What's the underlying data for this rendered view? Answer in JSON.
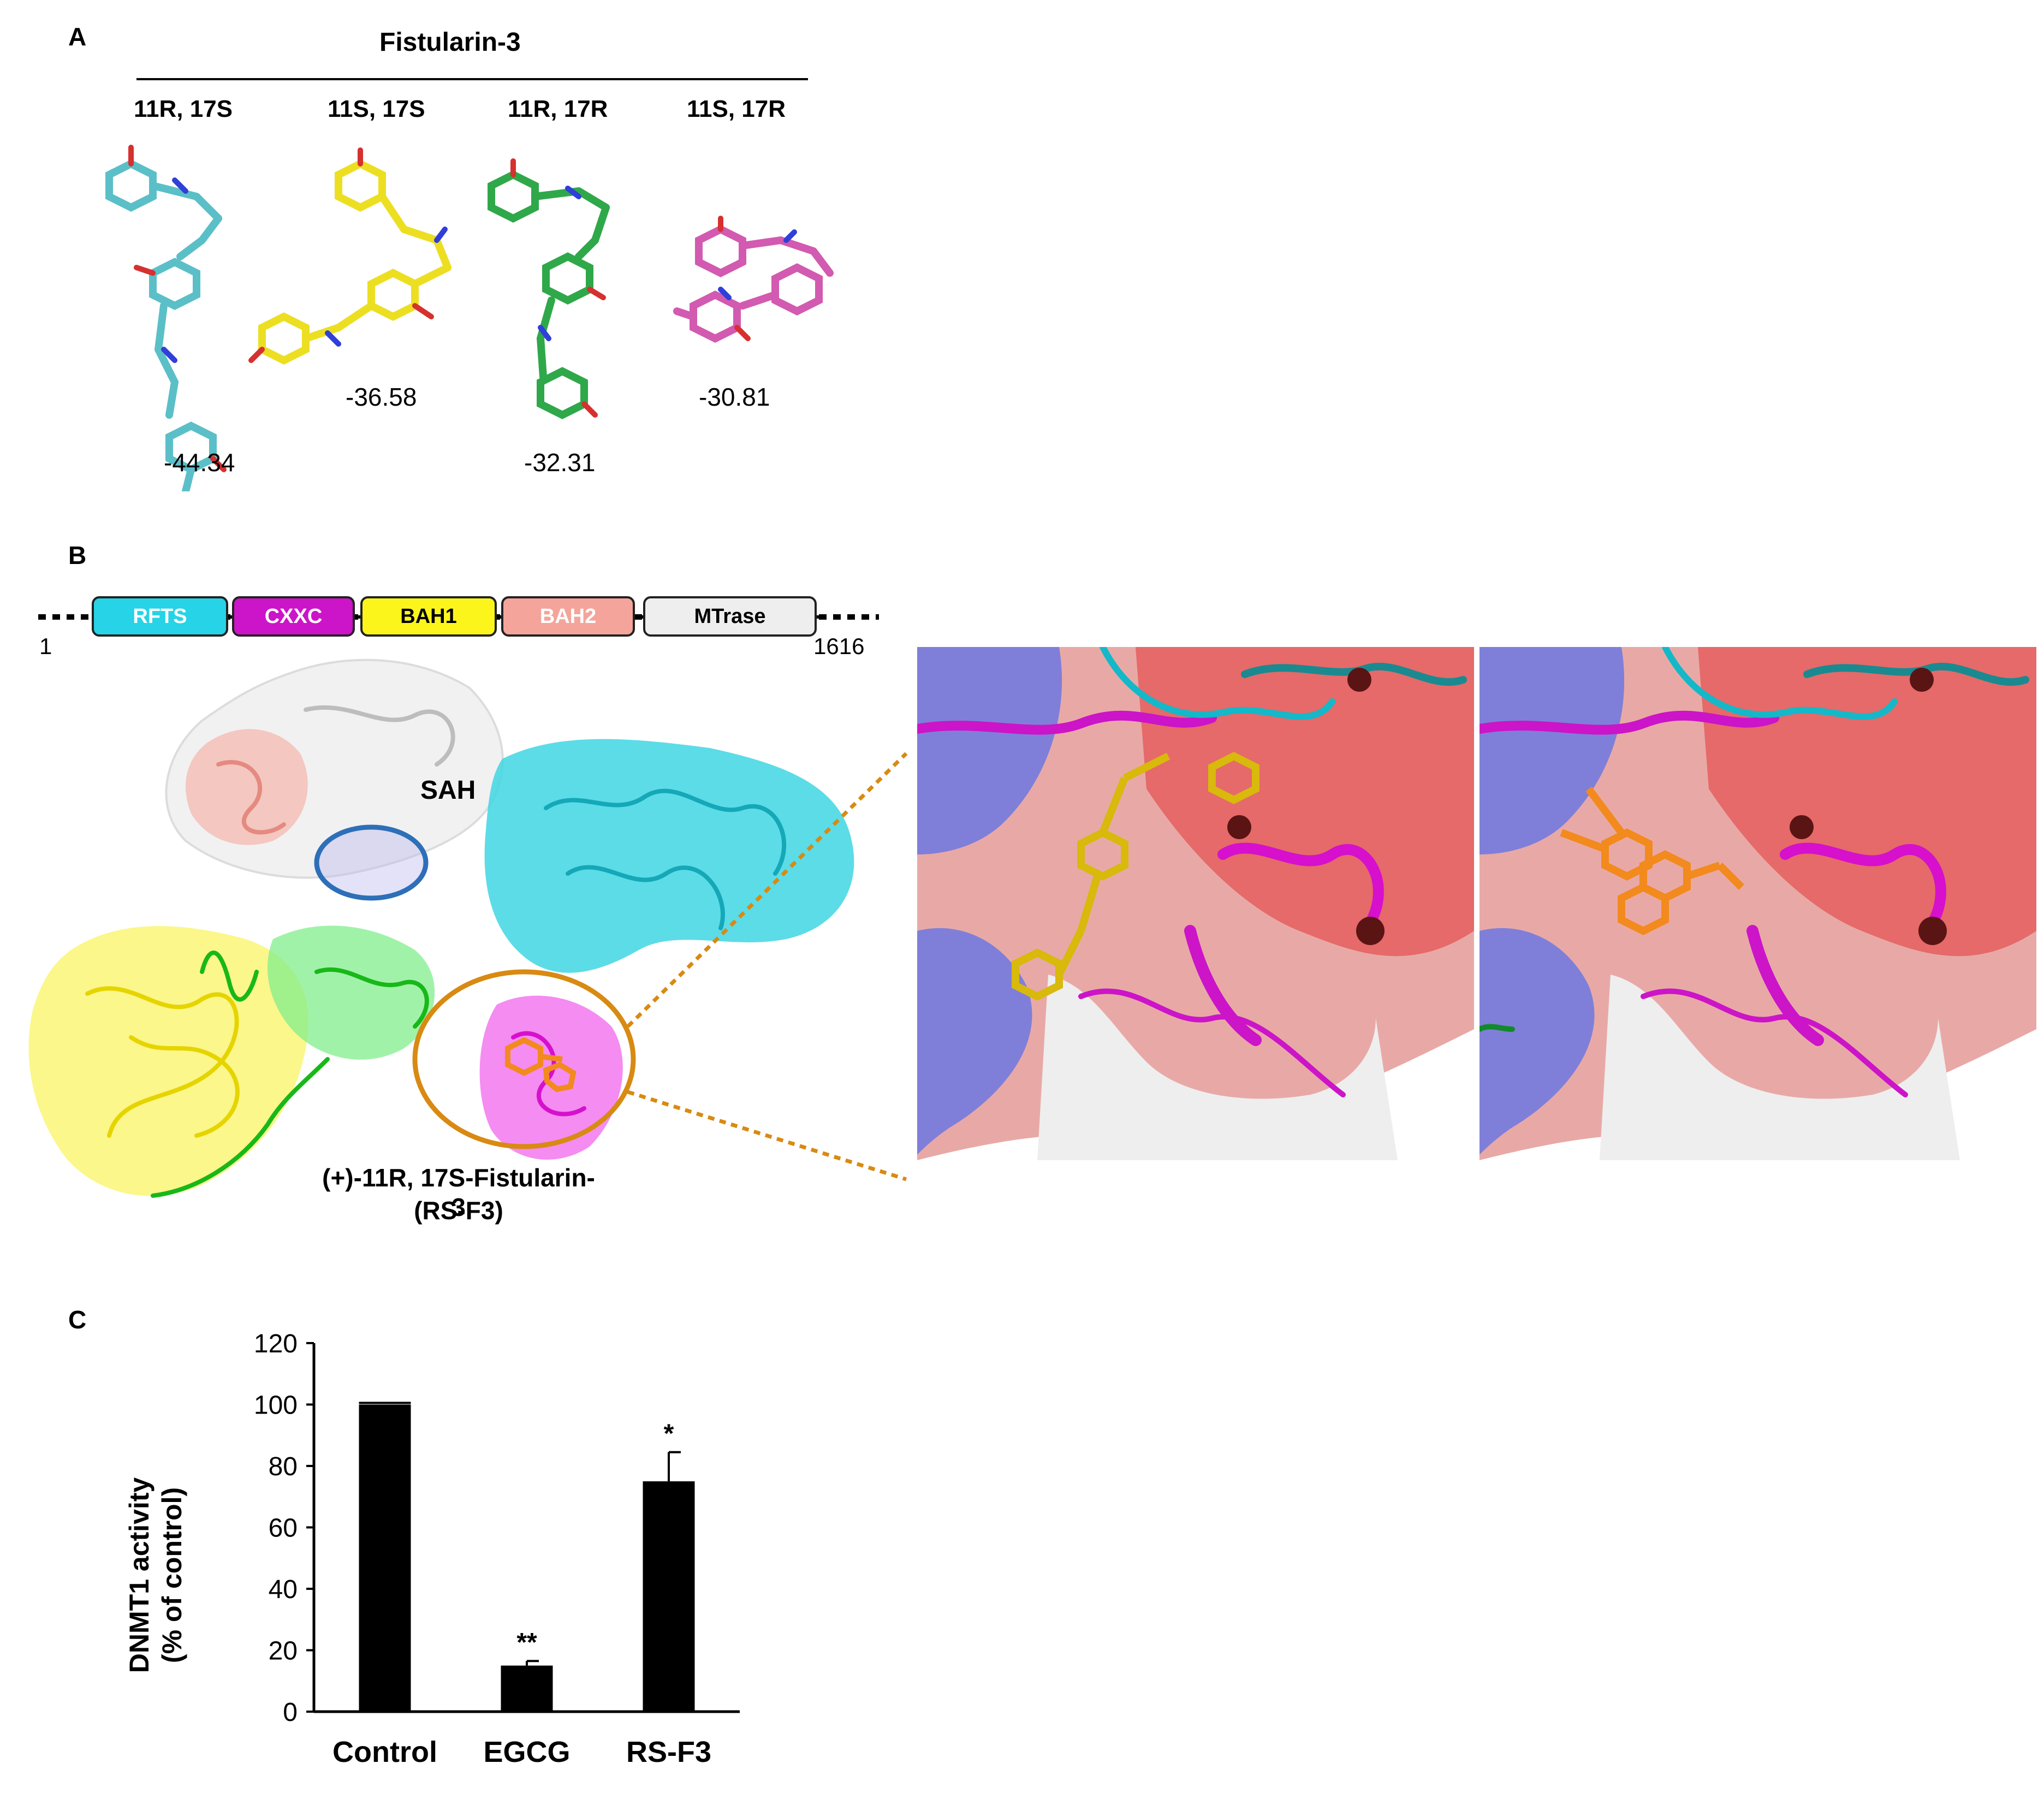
{
  "panel_a": {
    "letter": "A",
    "title": "Fistularin-3",
    "columns": [
      {
        "label": "11R, 17S",
        "energy": "-44.34",
        "color": "#5bbfc8"
      },
      {
        "label": "11S, 17S",
        "energy": "-36.58",
        "color": "#ecdf22"
      },
      {
        "label": "11R, 17R",
        "energy": "-32.31",
        "color": "#2fa84a"
      },
      {
        "label": "11S, 17R",
        "energy": "-30.81",
        "color": "#d25ab0"
      }
    ]
  },
  "panel_b": {
    "letter": "B",
    "domain_map": {
      "start": "1",
      "end": "1616",
      "domains": [
        {
          "label": "RFTS",
          "color": "#27d3e6",
          "text_color": "#ffffff"
        },
        {
          "label": "CXXC",
          "color": "#cc14c8",
          "text_color": "#ffffff"
        },
        {
          "label": "BAH1",
          "color": "#fbf51c",
          "text_color": "#000000"
        },
        {
          "label": "BAH2",
          "color": "#f4a49a",
          "text_color": "#ffffff"
        },
        {
          "label": "MTrase",
          "color": "#eeeeee",
          "text_color": "#000000"
        }
      ]
    },
    "sah_label": "SAH",
    "ligand_caption_line1": "(+)-11R, 17S-Fistularin-3",
    "ligand_caption_line2": "(RS-F3)",
    "colors": {
      "highlight_ring": "#d88a12",
      "sah_ring": "#2d6fb8",
      "ligand": "#f28a1d"
    }
  },
  "panel_c": {
    "letter": "C",
    "chart_data": {
      "type": "bar",
      "categories": [
        "Control",
        "EGCG",
        "RS-F3"
      ],
      "values": [
        100,
        15,
        75
      ],
      "errors": [
        0.5,
        1.5,
        9.5
      ],
      "significance": [
        "",
        "**",
        "*"
      ],
      "ylabel_line1": "DNMT1 activity",
      "ylabel_line2": "(% of control)",
      "ylim": [
        0,
        120
      ],
      "yticks": [
        0,
        20,
        40,
        60,
        80,
        100,
        120
      ],
      "bar_color": "#000000",
      "grid": false
    }
  }
}
